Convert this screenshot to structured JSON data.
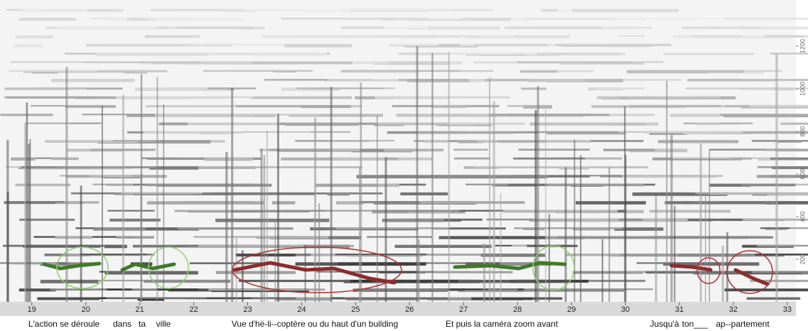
{
  "chart_data": {
    "type": "spectrogram",
    "xlim": [
      18.41,
      33.16
    ],
    "xticks": [
      19,
      20,
      21,
      22,
      23,
      24,
      25,
      26,
      27,
      28,
      29,
      30,
      31,
      32,
      33
    ],
    "ylim": [
      0,
      1400
    ],
    "yticks": [
      200,
      400,
      600,
      800,
      1000,
      1200
    ],
    "lyrics": [
      "L'action se déroule",
      "dans",
      "ta",
      "ville",
      "Vue d'hé-li--coptère ou du haut d'un building",
      "Et puis la caméra zoom avant",
      "Jusqu'à",
      "ton___",
      "ap--partement"
    ]
  }
}
